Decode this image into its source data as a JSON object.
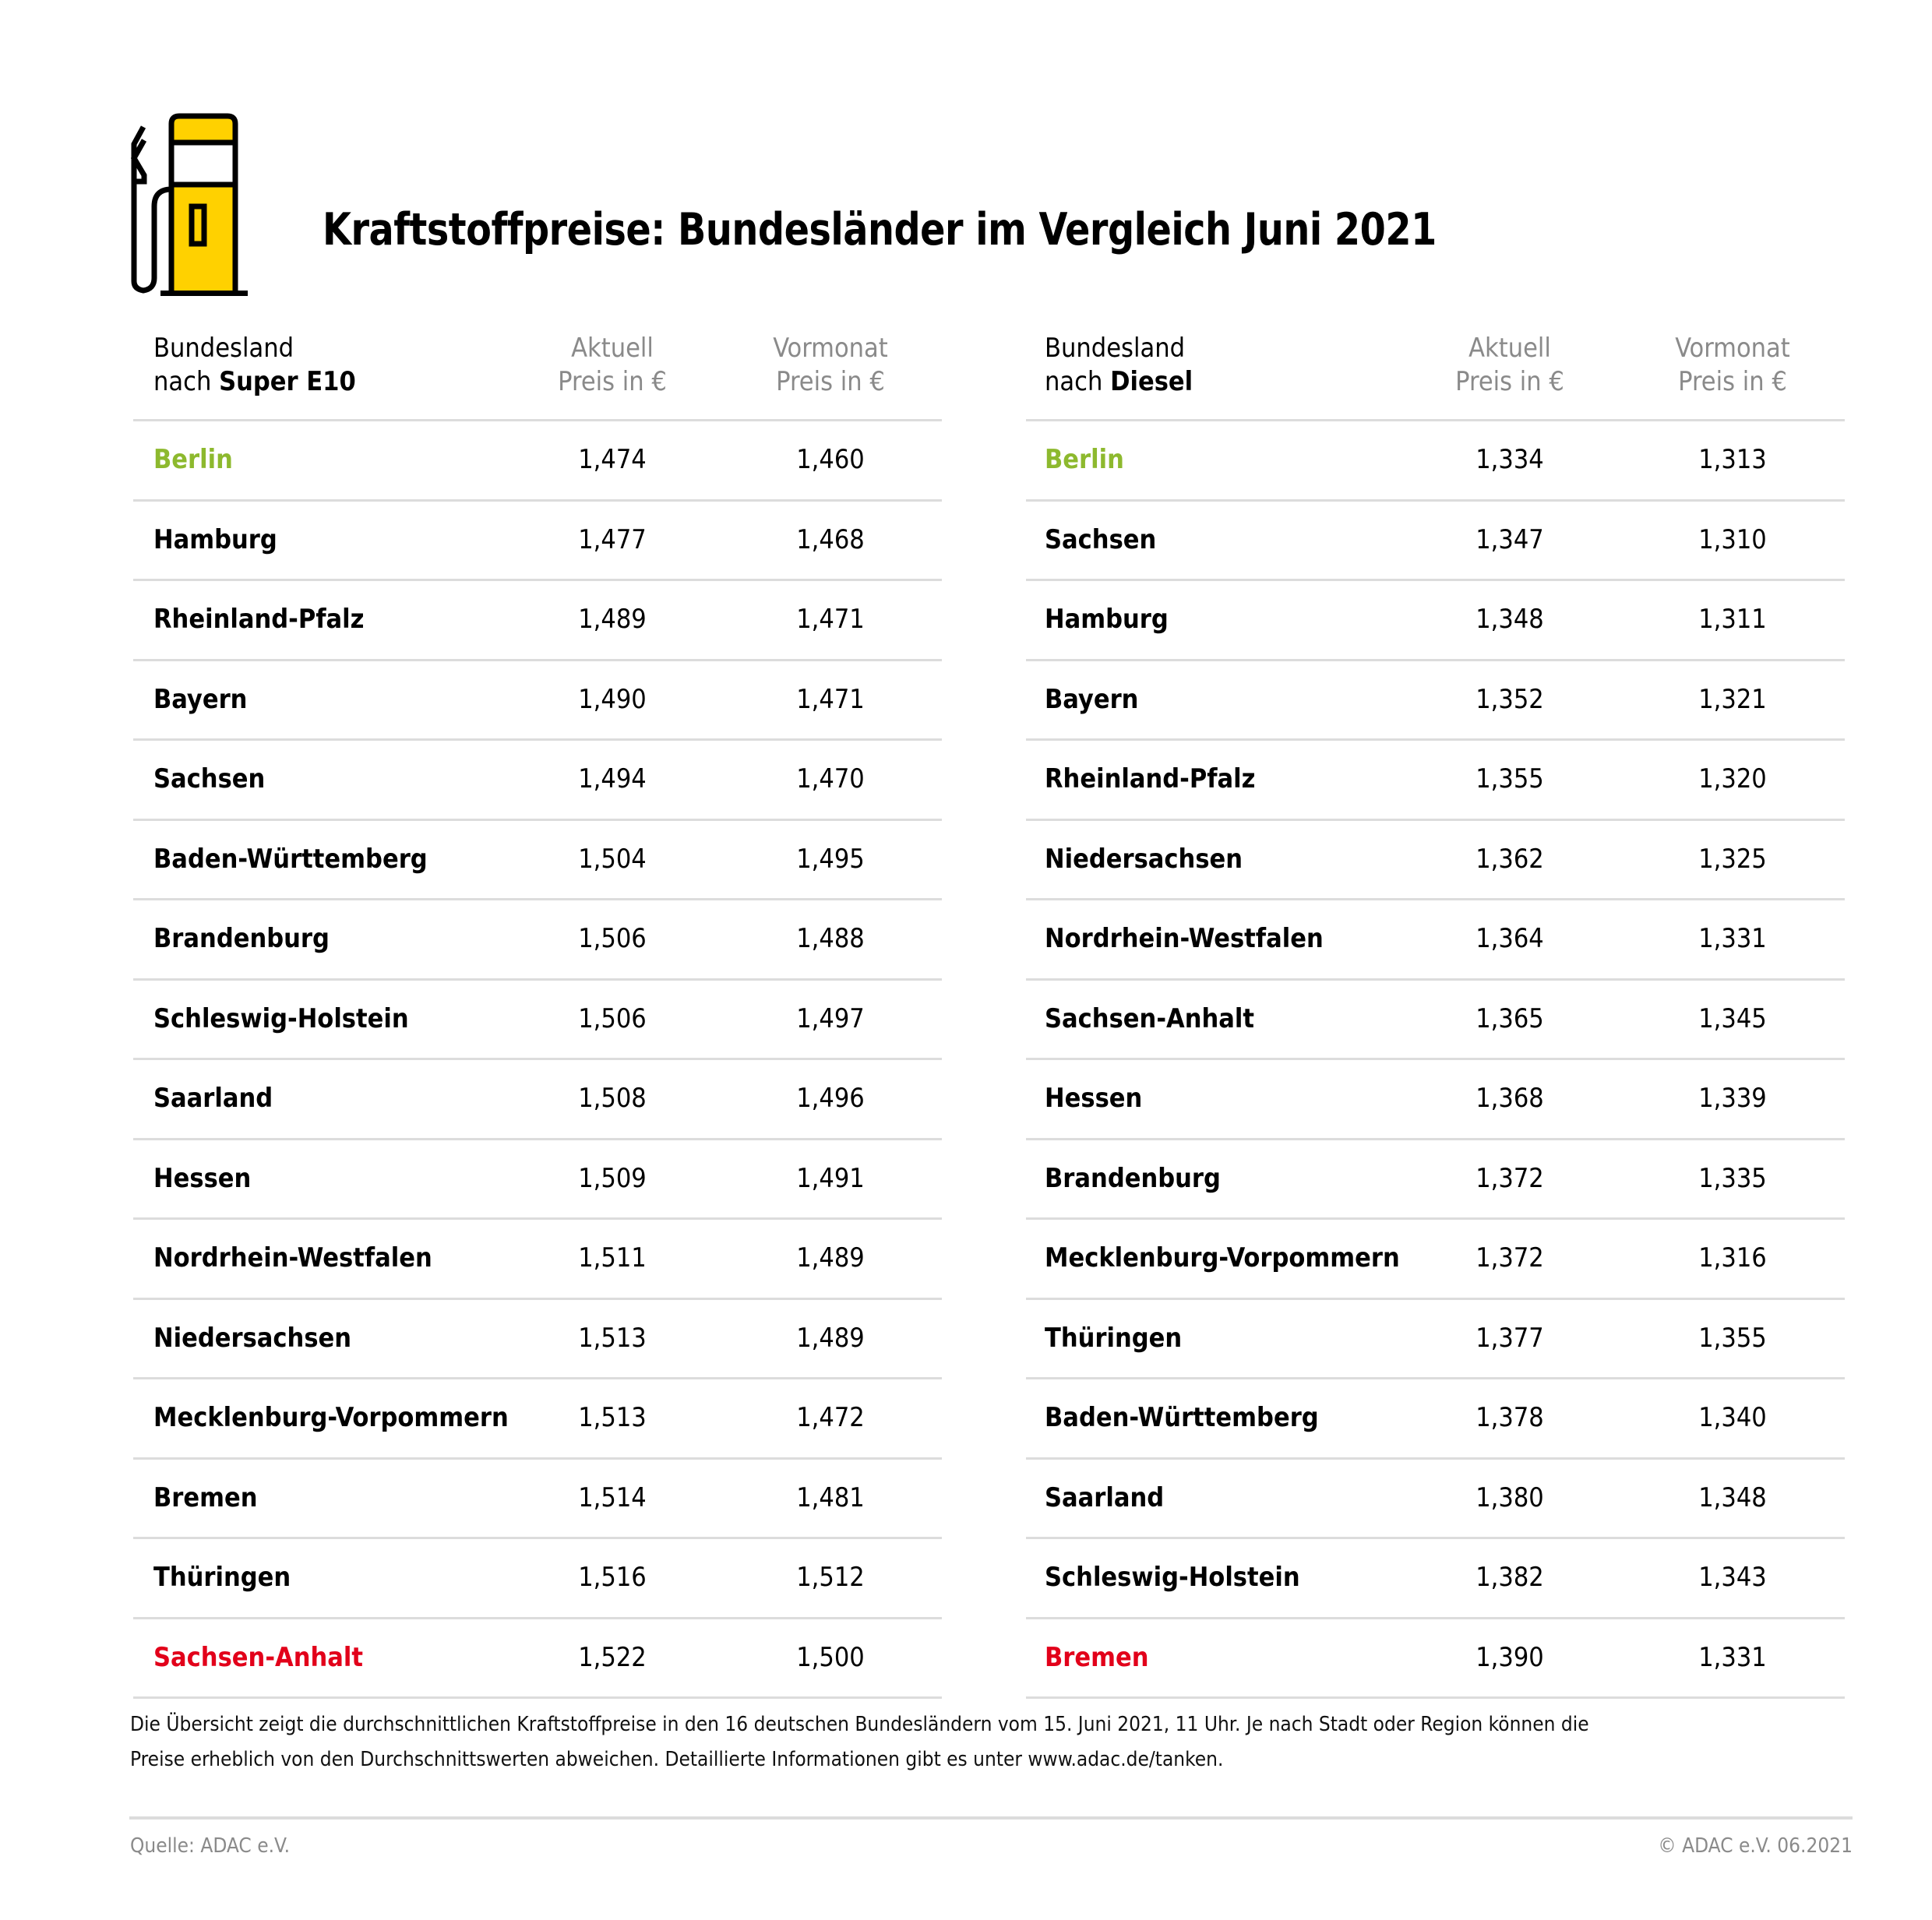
{
  "title": "Kraftstoffpreise: Bundesländer im Vergleich Juni 2021",
  "icon": "fuel-pump-icon",
  "colors": {
    "accent_yellow": "#FFD100",
    "cheapest_green": "#8DB92E",
    "most_expensive_red": "#E2001A"
  },
  "tables": [
    {
      "header": {
        "col1_line1": "Bundesland",
        "col1_prefix": "nach ",
        "col1_fuel": "Super E10",
        "col2_line1": "Aktuell",
        "col2_line2": "Preis in €",
        "col3_line1": "Vormonat",
        "col3_line2": "Preis in €"
      },
      "rows": [
        {
          "state": "Berlin",
          "current": "1,474",
          "previous": "1,460",
          "highlight": "green"
        },
        {
          "state": "Hamburg",
          "current": "1,477",
          "previous": "1,468"
        },
        {
          "state": "Rheinland-Pfalz",
          "current": "1,489",
          "previous": "1,471"
        },
        {
          "state": "Bayern",
          "current": "1,490",
          "previous": "1,471"
        },
        {
          "state": "Sachsen",
          "current": "1,494",
          "previous": "1,470"
        },
        {
          "state": "Baden-Württemberg",
          "current": "1,504",
          "previous": "1,495"
        },
        {
          "state": "Brandenburg",
          "current": "1,506",
          "previous": "1,488"
        },
        {
          "state": "Schleswig-Holstein",
          "current": "1,506",
          "previous": "1,497"
        },
        {
          "state": "Saarland",
          "current": "1,508",
          "previous": "1,496"
        },
        {
          "state": "Hessen",
          "current": "1,509",
          "previous": "1,491"
        },
        {
          "state": "Nordrhein-Westfalen",
          "current": "1,511",
          "previous": "1,489"
        },
        {
          "state": "Niedersachsen",
          "current": "1,513",
          "previous": "1,489"
        },
        {
          "state": "Mecklenburg-Vorpommern",
          "current": "1,513",
          "previous": "1,472"
        },
        {
          "state": "Bremen",
          "current": "1,514",
          "previous": "1,481"
        },
        {
          "state": "Thüringen",
          "current": "1,516",
          "previous": "1,512"
        },
        {
          "state": "Sachsen-Anhalt",
          "current": "1,522",
          "previous": "1,500",
          "highlight": "red"
        }
      ]
    },
    {
      "header": {
        "col1_line1": "Bundesland",
        "col1_prefix": "nach ",
        "col1_fuel": "Diesel",
        "col2_line1": "Aktuell",
        "col2_line2": "Preis in €",
        "col3_line1": "Vormonat",
        "col3_line2": "Preis in €"
      },
      "rows": [
        {
          "state": "Berlin",
          "current": "1,334",
          "previous": "1,313",
          "highlight": "green"
        },
        {
          "state": "Sachsen",
          "current": "1,347",
          "previous": "1,310"
        },
        {
          "state": "Hamburg",
          "current": "1,348",
          "previous": "1,311"
        },
        {
          "state": "Bayern",
          "current": "1,352",
          "previous": "1,321"
        },
        {
          "state": "Rheinland-Pfalz",
          "current": "1,355",
          "previous": "1,320"
        },
        {
          "state": "Niedersachsen",
          "current": "1,362",
          "previous": "1,325"
        },
        {
          "state": "Nordrhein-Westfalen",
          "current": "1,364",
          "previous": "1,331"
        },
        {
          "state": "Sachsen-Anhalt",
          "current": "1,365",
          "previous": "1,345"
        },
        {
          "state": "Hessen",
          "current": "1,368",
          "previous": "1,339"
        },
        {
          "state": "Brandenburg",
          "current": "1,372",
          "previous": "1,335"
        },
        {
          "state": "Mecklenburg-Vorpommern",
          "current": "1,372",
          "previous": "1,316"
        },
        {
          "state": "Thüringen",
          "current": "1,377",
          "previous": "1,355"
        },
        {
          "state": "Baden-Württemberg",
          "current": "1,378",
          "previous": "1,340"
        },
        {
          "state": "Saarland",
          "current": "1,380",
          "previous": "1,348"
        },
        {
          "state": "Schleswig-Holstein",
          "current": "1,382",
          "previous": "1,343"
        },
        {
          "state": "Bremen",
          "current": "1,390",
          "previous": "1,331",
          "highlight": "red"
        }
      ]
    }
  ],
  "footnote": {
    "line1": "Die Übersicht zeigt die durchschnittlichen Kraftstoffpreise in den 16 deutschen Bundesländern vom 15. Juni 2021, 11 Uhr. Je nach Stadt oder Region können die",
    "line2": "Preise erheblich von den Durchschnittswerten abweichen. Detaillierte Informationen gibt es unter www.adac.de/tanken."
  },
  "footer": {
    "source": "Quelle: ADAC e.V.",
    "copyright": "© ADAC e.V. 06.2021"
  }
}
